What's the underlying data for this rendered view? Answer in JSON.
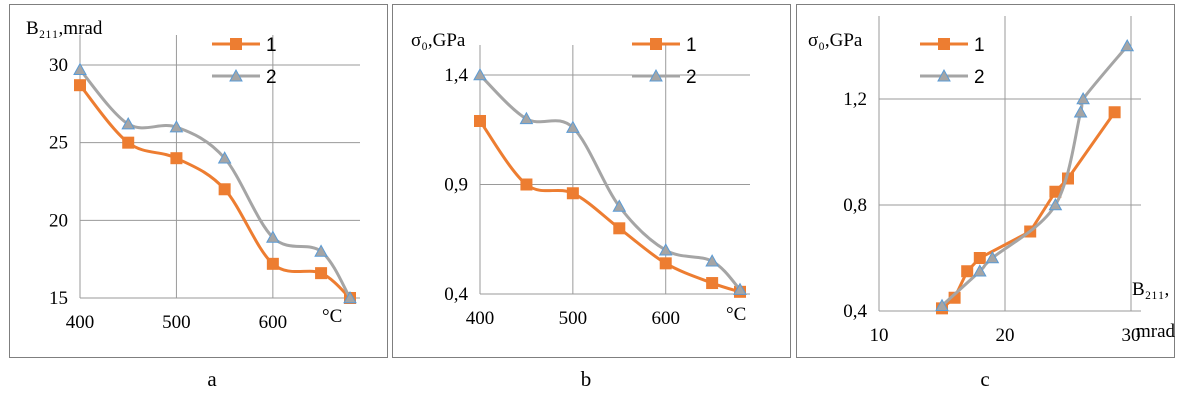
{
  "colors": {
    "series1": "#ED7D31",
    "series2": "#A5A5A5",
    "marker2_edge": "#5B9BD5",
    "grid": "#9a9a9a"
  },
  "chart_data": [
    {
      "type": "line",
      "panel_label": "a",
      "ylabel": "B₂₁₁,mrad",
      "xlabel": "°C",
      "x_ticks": [
        "400",
        "500",
        "600"
      ],
      "y_ticks": [
        "15",
        "20",
        "25",
        "30"
      ],
      "xlim": [
        400,
        680
      ],
      "ylim": [
        15,
        30
      ],
      "grid": "vertical and horizontal",
      "legend": "top-right",
      "series": [
        {
          "name": "1",
          "x": [
            400,
            450,
            500,
            550,
            600,
            650,
            680
          ],
          "y": [
            28.7,
            25.0,
            24.0,
            22.0,
            17.2,
            16.6,
            15.0
          ]
        },
        {
          "name": "2",
          "x": [
            400,
            450,
            500,
            550,
            600,
            650,
            680
          ],
          "y": [
            29.7,
            26.2,
            26.0,
            24.0,
            18.9,
            18.0,
            15.0
          ]
        }
      ]
    },
    {
      "type": "line",
      "panel_label": "b",
      "ylabel": "σ₀,GPa",
      "xlabel": "°C",
      "x_ticks": [
        "400",
        "500",
        "600"
      ],
      "y_ticks": [
        "0,4",
        "0,9",
        "1,4"
      ],
      "xlim": [
        400,
        680
      ],
      "ylim": [
        0.4,
        1.4
      ],
      "grid": "vertical and horizontal",
      "legend": "top-right",
      "series": [
        {
          "name": "1",
          "x": [
            400,
            450,
            500,
            550,
            600,
            650,
            680
          ],
          "y": [
            1.19,
            0.9,
            0.86,
            0.7,
            0.54,
            0.45,
            0.41
          ]
        },
        {
          "name": "2",
          "x": [
            400,
            450,
            500,
            550,
            600,
            650,
            680
          ],
          "y": [
            1.4,
            1.2,
            1.16,
            0.8,
            0.6,
            0.55,
            0.42
          ]
        }
      ]
    },
    {
      "type": "scatter",
      "panel_label": "c",
      "ylabel": "σ₀,GPa",
      "xlabel_line1": "B₂₁₁,",
      "xlabel_line2": "mrad",
      "x_ticks": [
        "10",
        "20",
        "30"
      ],
      "y_ticks": [
        "0,4",
        "0,8",
        "1,2"
      ],
      "xlim": [
        10,
        30
      ],
      "ylim": [
        0.4,
        1.4
      ],
      "grid": "vertical and horizontal",
      "legend": "top-right",
      "series": [
        {
          "name": "1",
          "x": [
            15.0,
            16.0,
            17.0,
            18.0,
            22.0,
            24.0,
            25.0,
            28.7
          ],
          "y": [
            0.41,
            0.45,
            0.55,
            0.6,
            0.7,
            0.85,
            0.9,
            1.15
          ]
        },
        {
          "name": "2",
          "x": [
            15.0,
            18.0,
            19.0,
            24.0,
            26.0,
            26.2,
            29.7
          ],
          "y": [
            0.42,
            0.55,
            0.6,
            0.8,
            1.15,
            1.2,
            1.4
          ]
        }
      ]
    }
  ]
}
